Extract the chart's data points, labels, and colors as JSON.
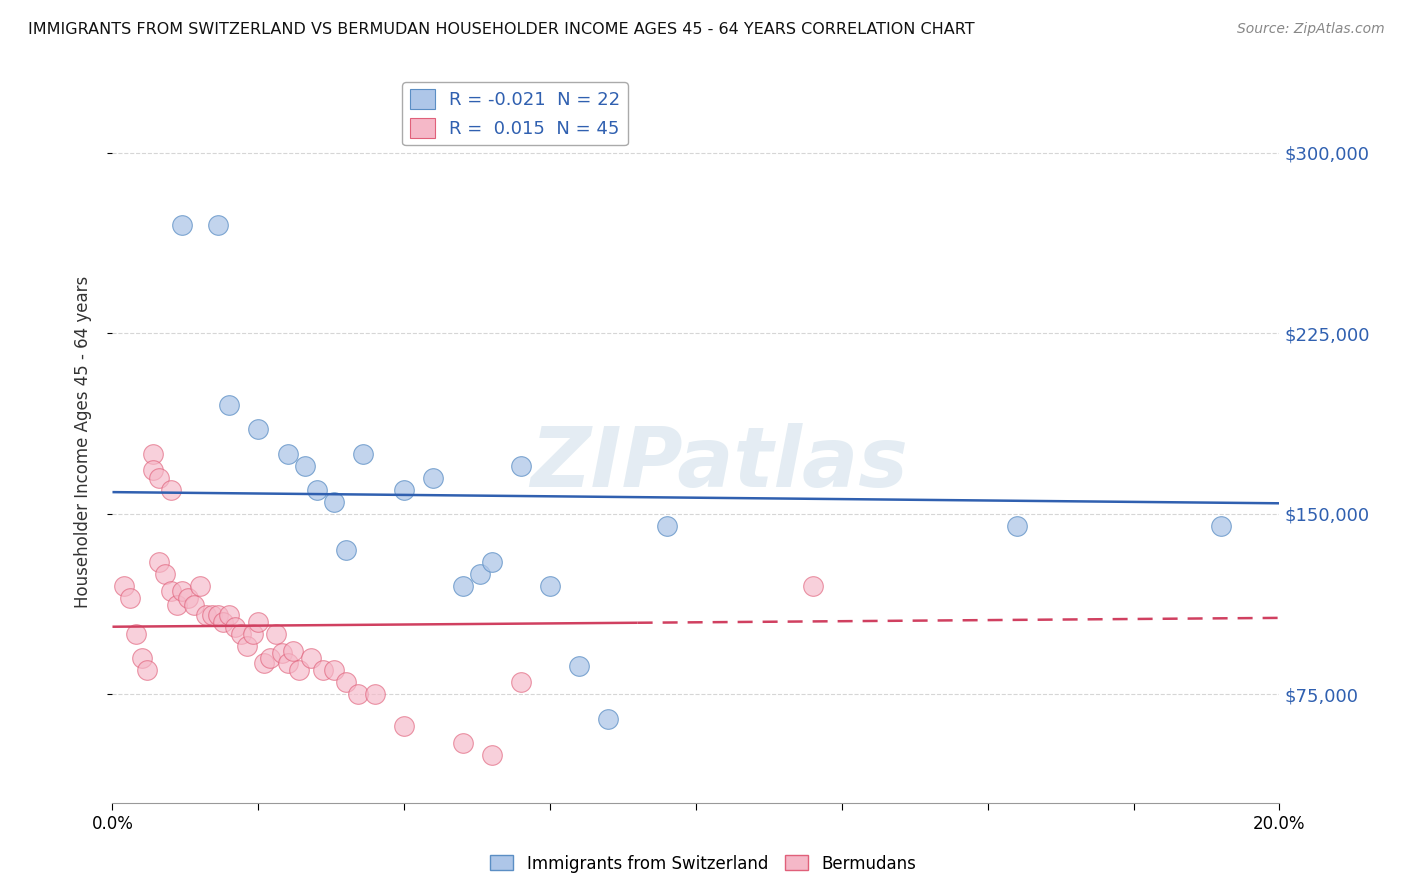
{
  "title": "IMMIGRANTS FROM SWITZERLAND VS BERMUDAN HOUSEHOLDER INCOME AGES 45 - 64 YEARS CORRELATION CHART",
  "source": "Source: ZipAtlas.com",
  "ylabel": "Householder Income Ages 45 - 64 years",
  "xlim": [
    0.0,
    0.2
  ],
  "ylim": [
    30000,
    330000
  ],
  "yticks": [
    75000,
    150000,
    225000,
    300000
  ],
  "ytick_labels": [
    "$75,000",
    "$150,000",
    "$225,000",
    "$300,000"
  ],
  "xticks": [
    0.0,
    0.025,
    0.05,
    0.075,
    0.1,
    0.125,
    0.15,
    0.175,
    0.2
  ],
  "xtick_labels_show": [
    "0.0%",
    "",
    "",
    "",
    "",
    "",
    "",
    "",
    "20.0%"
  ],
  "blue_R": -0.021,
  "blue_N": 22,
  "pink_R": 0.015,
  "pink_N": 45,
  "blue_label": "Immigrants from Switzerland",
  "pink_label": "Bermudans",
  "blue_color": "#aec6e8",
  "pink_color": "#f5b8c8",
  "blue_edge_color": "#5b8ec4",
  "pink_edge_color": "#e0607a",
  "blue_line_color": "#3060b0",
  "pink_line_color": "#d04060",
  "watermark": "ZIPatlas",
  "background_color": "#ffffff",
  "grid_color": "#cccccc",
  "blue_x": [
    0.012,
    0.018,
    0.02,
    0.025,
    0.03,
    0.033,
    0.035,
    0.038,
    0.04,
    0.043,
    0.05,
    0.055,
    0.06,
    0.063,
    0.065,
    0.07,
    0.075,
    0.08,
    0.085,
    0.095,
    0.155,
    0.19
  ],
  "blue_y": [
    270000,
    270000,
    195000,
    185000,
    175000,
    170000,
    160000,
    155000,
    135000,
    175000,
    160000,
    165000,
    120000,
    125000,
    130000,
    170000,
    120000,
    87000,
    65000,
    145000,
    145000,
    145000
  ],
  "pink_x": [
    0.002,
    0.003,
    0.004,
    0.005,
    0.006,
    0.007,
    0.007,
    0.008,
    0.008,
    0.009,
    0.01,
    0.01,
    0.011,
    0.012,
    0.013,
    0.014,
    0.015,
    0.016,
    0.017,
    0.018,
    0.019,
    0.02,
    0.021,
    0.022,
    0.023,
    0.024,
    0.025,
    0.026,
    0.027,
    0.028,
    0.029,
    0.03,
    0.031,
    0.032,
    0.034,
    0.036,
    0.038,
    0.04,
    0.042,
    0.045,
    0.05,
    0.06,
    0.065,
    0.07,
    0.12
  ],
  "pink_y": [
    120000,
    115000,
    100000,
    90000,
    85000,
    175000,
    168000,
    165000,
    130000,
    125000,
    160000,
    118000,
    112000,
    118000,
    115000,
    112000,
    120000,
    108000,
    108000,
    108000,
    105000,
    108000,
    103000,
    100000,
    95000,
    100000,
    105000,
    88000,
    90000,
    100000,
    92000,
    88000,
    93000,
    85000,
    90000,
    85000,
    85000,
    80000,
    75000,
    75000,
    62000,
    55000,
    50000,
    80000,
    120000
  ]
}
